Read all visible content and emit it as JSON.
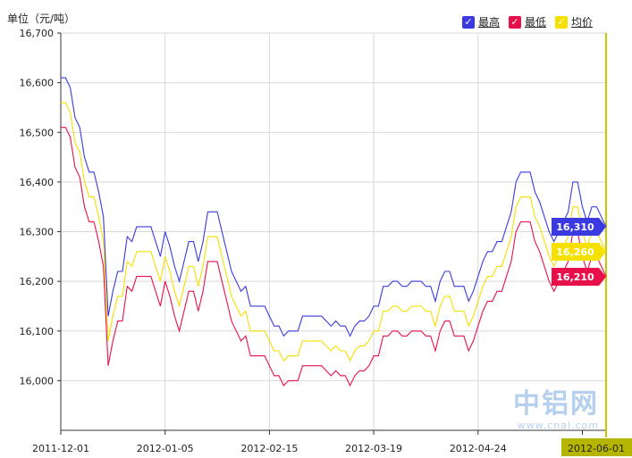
{
  "unit": "单位（元/吨）",
  "legend": [
    {
      "label": "最高",
      "color": "#3a3ae0"
    },
    {
      "label": "最低",
      "color": "#e8104a"
    },
    {
      "label": "均价",
      "color": "#f5e000"
    }
  ],
  "watermark": {
    "name": "中铝网",
    "url": "www.cnal.com"
  },
  "chart_data": {
    "type": "line",
    "xlabel": "",
    "ylabel": "单位（元/吨）",
    "ylim": [
      15900,
      16700
    ],
    "yticks": [
      16000,
      16100,
      16200,
      16300,
      16400,
      16500,
      16600,
      16700
    ],
    "ytick_labels": [
      "16,000",
      "16,100",
      "16,200",
      "16,300",
      "16,400",
      "16,500",
      "16,600",
      "16,700"
    ],
    "x_ticks": [
      {
        "label": "2011-12-01",
        "index": 0
      },
      {
        "label": "2012-01-05",
        "index": 22
      },
      {
        "label": "2012-02-15",
        "index": 44
      },
      {
        "label": "2012-03-19",
        "index": 66
      },
      {
        "label": "2012-04-24",
        "index": 88
      },
      {
        "label": "2012-06-01",
        "index": 110
      }
    ],
    "grid": true,
    "series": [
      {
        "name": "最高",
        "color": "#3a3ae0",
        "last_label": "16,310",
        "values": [
          16610,
          16610,
          16590,
          16530,
          16510,
          16450,
          16420,
          16420,
          16380,
          16330,
          16130,
          16180,
          16220,
          16220,
          16290,
          16280,
          16310,
          16310,
          16310,
          16310,
          16280,
          16250,
          16300,
          16270,
          16230,
          16200,
          16240,
          16280,
          16280,
          16240,
          16280,
          16340,
          16340,
          16340,
          16300,
          16260,
          16220,
          16200,
          16180,
          16190,
          16150,
          16150,
          16150,
          16150,
          16130,
          16110,
          16110,
          16090,
          16100,
          16100,
          16100,
          16130,
          16130,
          16130,
          16130,
          16130,
          16120,
          16110,
          16120,
          16110,
          16110,
          16090,
          16110,
          16120,
          16120,
          16130,
          16150,
          16150,
          16190,
          16190,
          16200,
          16200,
          16190,
          16190,
          16200,
          16200,
          16200,
          16190,
          16190,
          16160,
          16200,
          16220,
          16220,
          16190,
          16190,
          16190,
          16160,
          16180,
          16210,
          16240,
          16260,
          16260,
          16280,
          16280,
          16310,
          16340,
          16400,
          16420,
          16420,
          16420,
          16380,
          16360,
          16330,
          16300,
          16280,
          16300,
          16320,
          16340,
          16400,
          16400,
          16350,
          16320,
          16350,
          16350,
          16330,
          16310
        ]
      },
      {
        "name": "均价",
        "color": "#f5e000",
        "last_label": "16,260",
        "values": [
          16560,
          16560,
          16540,
          16480,
          16460,
          16400,
          16370,
          16370,
          16330,
          16280,
          16080,
          16130,
          16170,
          16170,
          16240,
          16230,
          16260,
          16260,
          16260,
          16260,
          16230,
          16200,
          16250,
          16220,
          16180,
          16150,
          16190,
          16230,
          16230,
          16190,
          16230,
          16290,
          16290,
          16290,
          16250,
          16210,
          16170,
          16150,
          16130,
          16140,
          16100,
          16100,
          16100,
          16100,
          16080,
          16060,
          16060,
          16040,
          16050,
          16050,
          16050,
          16080,
          16080,
          16080,
          16080,
          16080,
          16070,
          16060,
          16070,
          16060,
          16060,
          16040,
          16060,
          16070,
          16070,
          16080,
          16100,
          16100,
          16140,
          16140,
          16150,
          16150,
          16140,
          16140,
          16150,
          16150,
          16150,
          16140,
          16140,
          16110,
          16150,
          16170,
          16170,
          16140,
          16140,
          16140,
          16110,
          16130,
          16160,
          16190,
          16210,
          16210,
          16230,
          16230,
          16260,
          16290,
          16350,
          16370,
          16370,
          16370,
          16330,
          16310,
          16280,
          16250,
          16230,
          16250,
          16270,
          16290,
          16350,
          16350,
          16300,
          16270,
          16300,
          16300,
          16280,
          16260
        ]
      },
      {
        "name": "最低",
        "color": "#e8104a",
        "last_label": "16,210",
        "values": [
          16510,
          16510,
          16490,
          16430,
          16410,
          16350,
          16320,
          16320,
          16280,
          16230,
          16030,
          16080,
          16120,
          16120,
          16190,
          16180,
          16210,
          16210,
          16210,
          16210,
          16180,
          16150,
          16200,
          16170,
          16130,
          16100,
          16140,
          16180,
          16180,
          16140,
          16180,
          16240,
          16240,
          16240,
          16200,
          16160,
          16120,
          16100,
          16080,
          16090,
          16050,
          16050,
          16050,
          16050,
          16030,
          16010,
          16010,
          15990,
          16000,
          16000,
          16000,
          16030,
          16030,
          16030,
          16030,
          16030,
          16020,
          16010,
          16020,
          16010,
          16010,
          15990,
          16010,
          16020,
          16020,
          16030,
          16050,
          16050,
          16090,
          16090,
          16100,
          16100,
          16090,
          16090,
          16100,
          16100,
          16100,
          16090,
          16090,
          16060,
          16100,
          16120,
          16120,
          16090,
          16090,
          16090,
          16060,
          16080,
          16110,
          16140,
          16160,
          16160,
          16180,
          16180,
          16210,
          16240,
          16300,
          16320,
          16320,
          16320,
          16280,
          16260,
          16230,
          16200,
          16180,
          16200,
          16220,
          16240,
          16300,
          16300,
          16250,
          16220,
          16250,
          16250,
          16230,
          16210
        ]
      }
    ]
  }
}
